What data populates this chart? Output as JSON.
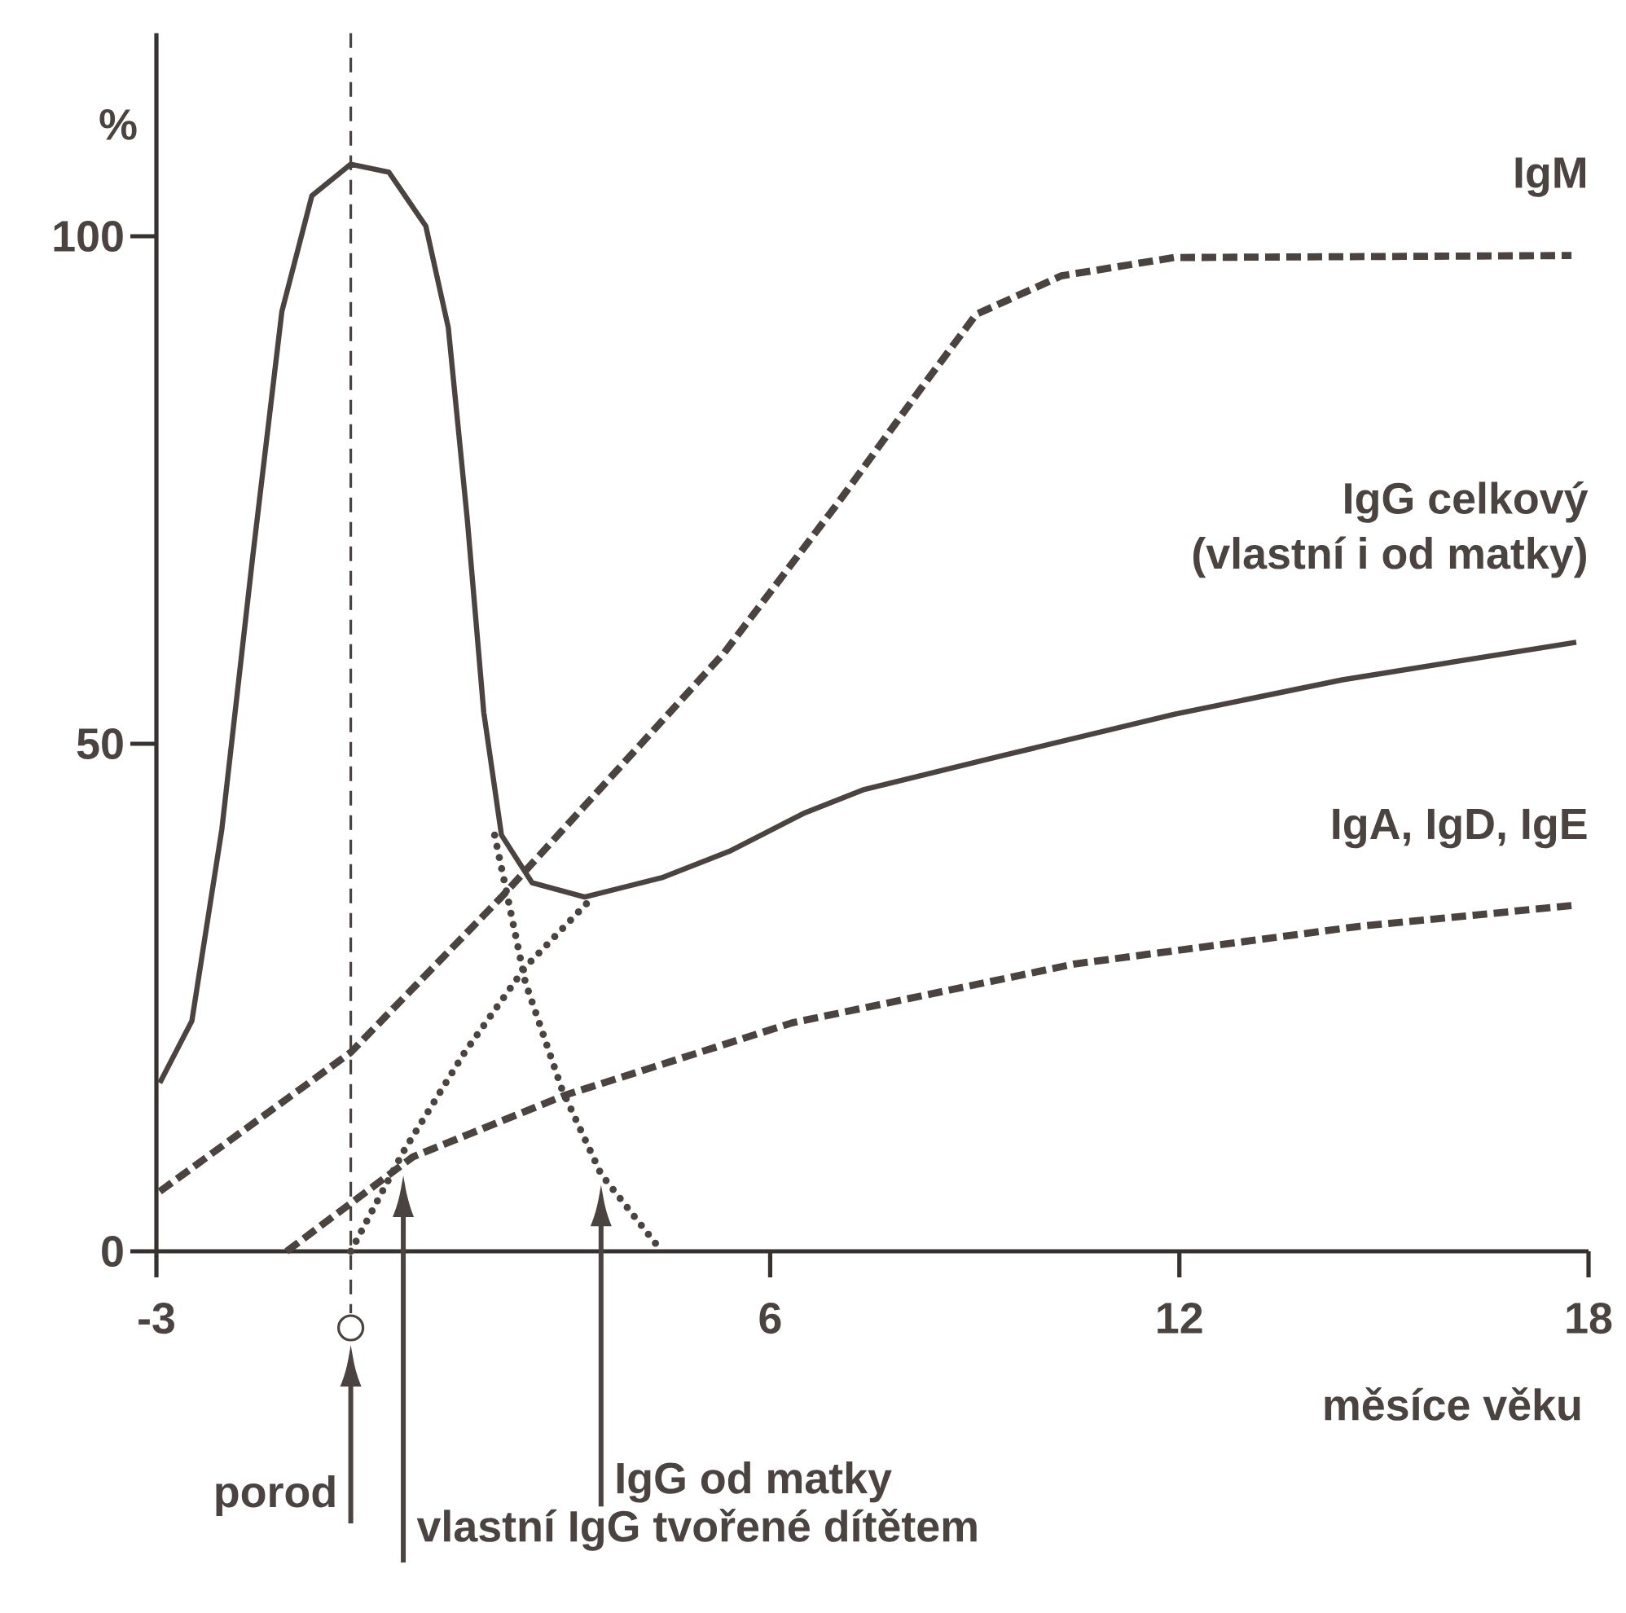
{
  "chart_data": {
    "type": "line",
    "xlabel": "měsíce věku",
    "ylabel": "%",
    "xlim": [
      -3,
      18
    ],
    "ylim": [
      0,
      120
    ],
    "xticks": [
      -3,
      6,
      12,
      18
    ],
    "yticks": [
      0,
      50,
      100
    ],
    "series": [
      {
        "name": "IgM",
        "color": "#4a4340",
        "line_style": "dashed",
        "x": [
          -2.95,
          -0.15,
          2.06,
          5.33,
          6.98,
          8.2,
          9.02,
          10.27,
          11.92,
          17.75
        ],
        "values": [
          5.9,
          19.6,
          34.9,
          59,
          73.6,
          84.9,
          92.3,
          96.1,
          97.9,
          98.1
        ]
      },
      {
        "name": "IgG celkový",
        "color": "#4a4340",
        "line_style": "solid",
        "x": [
          -2.95,
          -2.48,
          -2.04,
          -1.59,
          -1.16,
          -0.72,
          -0.15,
          0.41,
          0.95,
          1.28,
          1.56,
          1.8,
          2.06,
          2.51,
          3.28,
          4.41,
          5.4,
          6.51,
          7.38,
          9.45,
          11.92,
          14.39,
          17.82
        ],
        "values": [
          16.6,
          22.7,
          41.6,
          68.3,
          92.6,
          104,
          107.1,
          106.3,
          101,
          91,
          72,
          53.1,
          41,
          36.3,
          34.9,
          36.8,
          39.4,
          43.2,
          45.5,
          48.9,
          52.9,
          56.3,
          60
        ]
      },
      {
        "name": "IgA, IgD, IgE",
        "color": "#4a4340",
        "line_style": "dashed",
        "x": [
          -1.09,
          0.76,
          3.0,
          6.32,
          10.46,
          14.62,
          17.82
        ],
        "values": [
          0,
          9.3,
          15.4,
          22.5,
          28.3,
          32,
          34.1
        ]
      },
      {
        "color": "#4a4340",
        "line_style": "dotted",
        "x": [
          1.96,
          2.41,
          2.95,
          3.52,
          4.41
        ],
        "values": [
          41,
          26.5,
          15.9,
          7.6,
          0
        ]
      },
      {
        "color": "#4a4340",
        "line_style": "dotted",
        "x": [
          -0.15,
          0.62,
          1.52,
          2.41,
          3.4
        ],
        "values": [
          0,
          9.8,
          19.6,
          28,
          34.9
        ]
      }
    ],
    "ref_lines": [
      {
        "axis": "x",
        "value": -0.15,
        "line_style": "dashed"
      }
    ],
    "annotations": [
      "porod",
      "vlastní IgG tvořené dítětem",
      "IgG od matky",
      "(vlastní i od matky)"
    ]
  }
}
